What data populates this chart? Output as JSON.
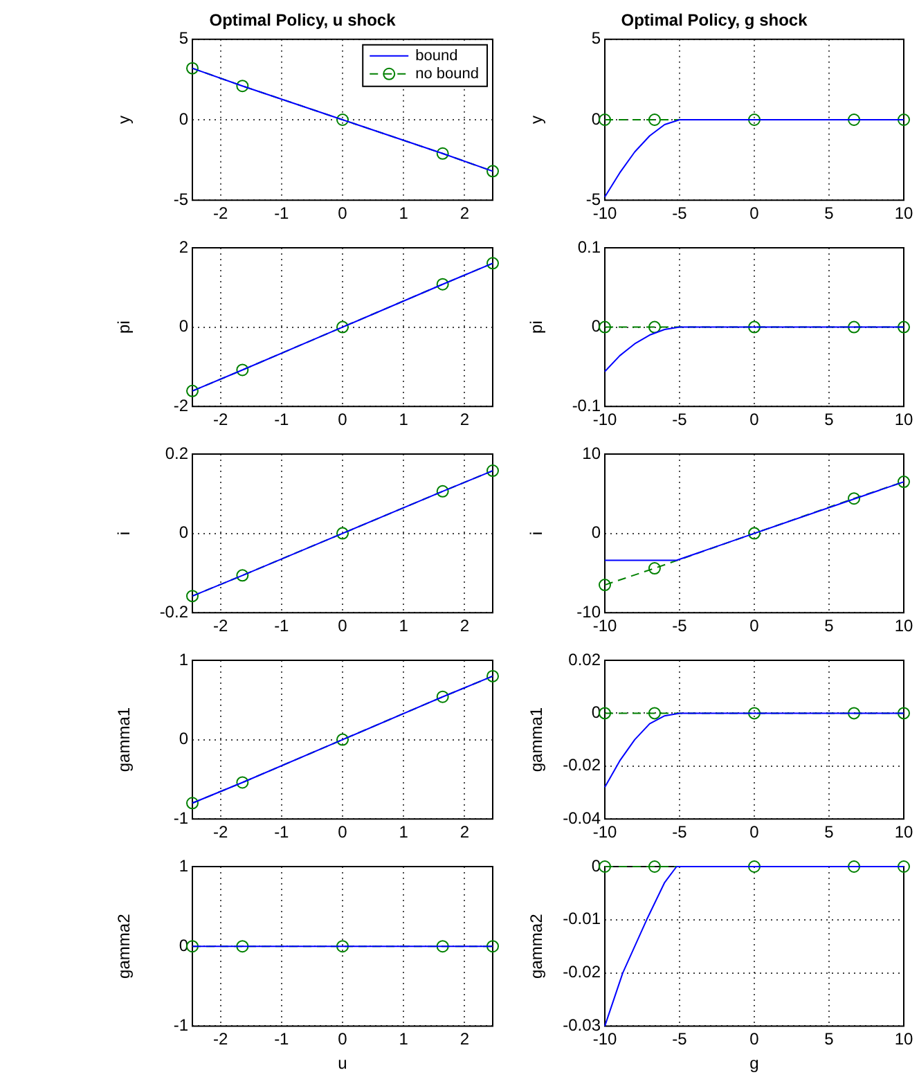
{
  "chart_data": [
    {
      "type": "line",
      "title": "Optimal Policy, u shock",
      "ylabel": "y",
      "xlim": [
        -2.46,
        2.46
      ],
      "xticks": [
        -2,
        -1,
        0,
        1,
        2
      ],
      "ylim": [
        -5,
        5
      ],
      "yticks": [
        -5,
        0,
        5
      ],
      "grid": true,
      "legend": "top right",
      "series": [
        {
          "name": "bound",
          "color": "#0000ff",
          "marker": "none",
          "line_style": "solid",
          "x": [
            -2.46,
            -1.64,
            0,
            1.64,
            2.46
          ],
          "values": [
            3.2,
            2.1,
            0,
            -2.1,
            -3.2
          ]
        },
        {
          "name": "no bound",
          "color": "#008000",
          "marker": "circle",
          "line_style": "dashed",
          "x": [
            -2.46,
            -1.64,
            0,
            1.64,
            2.46
          ],
          "values": [
            3.2,
            2.1,
            0,
            -2.1,
            -3.2
          ]
        }
      ]
    },
    {
      "type": "line",
      "title": "Optimal Policy, g shock",
      "ylabel": "y",
      "xlim": [
        -10,
        10
      ],
      "xticks": [
        -10,
        -5,
        0,
        5,
        10
      ],
      "ylim": [
        -5,
        5
      ],
      "yticks": [
        -5,
        0,
        5
      ],
      "grid": true,
      "series": [
        {
          "color": "#0000ff",
          "marker": "none",
          "line_style": "solid",
          "x": [
            -10,
            -9,
            -8,
            -7,
            -6,
            -5,
            10
          ],
          "values": [
            -4.8,
            -3.3,
            -2.0,
            -1.0,
            -0.3,
            0,
            0
          ]
        },
        {
          "color": "#008000",
          "marker": "circle",
          "line_style": "dashed",
          "x": [
            -10,
            -6.67,
            0,
            6.67,
            10
          ],
          "values": [
            0,
            0,
            0,
            0,
            0
          ]
        }
      ]
    },
    {
      "type": "line",
      "ylabel": "pi",
      "xlim": [
        -2.46,
        2.46
      ],
      "xticks": [
        -2,
        -1,
        0,
        1,
        2
      ],
      "ylim": [
        -2,
        2
      ],
      "yticks": [
        -2,
        0,
        2
      ],
      "grid": true,
      "series": [
        {
          "color": "#0000ff",
          "marker": "none",
          "line_style": "solid",
          "x": [
            -2.46,
            -1.64,
            0,
            1.64,
            2.46
          ],
          "values": [
            -1.61,
            -1.08,
            0,
            1.08,
            1.61
          ]
        },
        {
          "color": "#008000",
          "marker": "circle",
          "line_style": "dashed",
          "x": [
            -2.46,
            -1.64,
            0,
            1.64,
            2.46
          ],
          "values": [
            -1.61,
            -1.08,
            0,
            1.08,
            1.61
          ]
        }
      ]
    },
    {
      "type": "line",
      "ylabel": "pi",
      "xlim": [
        -10,
        10
      ],
      "xticks": [
        -10,
        -5,
        0,
        5,
        10
      ],
      "ylim": [
        -0.1,
        0.1
      ],
      "yticks": [
        -0.1,
        0,
        0.1
      ],
      "grid": true,
      "series": [
        {
          "color": "#0000ff",
          "marker": "none",
          "line_style": "solid",
          "x": [
            -10,
            -9,
            -8,
            -7,
            -6,
            -5,
            10
          ],
          "values": [
            -0.056,
            -0.036,
            -0.021,
            -0.01,
            -0.003,
            0,
            0
          ]
        },
        {
          "color": "#008000",
          "marker": "circle",
          "line_style": "dashed",
          "x": [
            -10,
            -6.67,
            0,
            6.67,
            10
          ],
          "values": [
            0,
            0,
            0,
            0,
            0
          ]
        }
      ]
    },
    {
      "type": "line",
      "ylabel": "i",
      "xlim": [
        -2.46,
        2.46
      ],
      "xticks": [
        -2,
        -1,
        0,
        1,
        2
      ],
      "ylim": [
        -0.2,
        0.2
      ],
      "yticks": [
        -0.2,
        0,
        0.2
      ],
      "grid": true,
      "series": [
        {
          "color": "#0000ff",
          "marker": "none",
          "line_style": "solid",
          "x": [
            -2.46,
            -1.64,
            0,
            1.64,
            2.46
          ],
          "values": [
            -0.158,
            -0.106,
            0,
            0.106,
            0.158
          ]
        },
        {
          "color": "#008000",
          "marker": "circle",
          "line_style": "dashed",
          "x": [
            -2.46,
            -1.64,
            0,
            1.64,
            2.46
          ],
          "values": [
            -0.158,
            -0.106,
            0,
            0.106,
            0.158
          ]
        }
      ]
    },
    {
      "type": "line",
      "ylabel": "i",
      "xlim": [
        -10,
        10
      ],
      "xticks": [
        -10,
        -5,
        0,
        5,
        10
      ],
      "ylim": [
        -10,
        10
      ],
      "yticks": [
        -10,
        0,
        10
      ],
      "grid": true,
      "series": [
        {
          "color": "#0000ff",
          "marker": "none",
          "line_style": "solid",
          "x": [
            -10,
            -5.2,
            0,
            10
          ],
          "values": [
            -3.4,
            -3.4,
            0,
            6.5
          ]
        },
        {
          "color": "#008000",
          "marker": "circle",
          "line_style": "dashed",
          "x": [
            -10,
            -6.67,
            0,
            6.67,
            10
          ],
          "values": [
            -6.5,
            -4.4,
            0,
            4.4,
            6.5
          ]
        }
      ]
    },
    {
      "type": "line",
      "ylabel": "gamma1",
      "xlim": [
        -2.46,
        2.46
      ],
      "xticks": [
        -2,
        -1,
        0,
        1,
        2
      ],
      "ylim": [
        -1,
        1
      ],
      "yticks": [
        -1,
        0,
        1
      ],
      "grid": true,
      "series": [
        {
          "color": "#0000ff",
          "marker": "none",
          "line_style": "solid",
          "x": [
            -2.46,
            -1.64,
            0,
            1.64,
            2.46
          ],
          "values": [
            -0.8,
            -0.54,
            0,
            0.54,
            0.8
          ]
        },
        {
          "color": "#008000",
          "marker": "circle",
          "line_style": "dashed",
          "x": [
            -2.46,
            -1.64,
            0,
            1.64,
            2.46
          ],
          "values": [
            -0.8,
            -0.54,
            0,
            0.54,
            0.8
          ]
        }
      ]
    },
    {
      "type": "line",
      "ylabel": "gamma1",
      "xlim": [
        -10,
        10
      ],
      "xticks": [
        -10,
        -5,
        0,
        5,
        10
      ],
      "ylim": [
        -0.04,
        0.02
      ],
      "yticks": [
        -0.04,
        -0.02,
        0,
        0.02
      ],
      "grid": true,
      "series": [
        {
          "color": "#0000ff",
          "marker": "none",
          "line_style": "solid",
          "x": [
            -10,
            -9,
            -8,
            -7,
            -6,
            -5,
            10
          ],
          "values": [
            -0.028,
            -0.018,
            -0.01,
            -0.004,
            -0.001,
            0,
            0
          ]
        },
        {
          "color": "#008000",
          "marker": "circle",
          "line_style": "dashed",
          "x": [
            -10,
            -6.67,
            0,
            6.67,
            10
          ],
          "values": [
            0,
            0,
            0,
            0,
            0
          ]
        }
      ]
    },
    {
      "type": "line",
      "xlabel": "u",
      "ylabel": "gamma2",
      "xlim": [
        -2.46,
        2.46
      ],
      "xticks": [
        -2,
        -1,
        0,
        1,
        2
      ],
      "ylim": [
        -1,
        1
      ],
      "yticks": [
        -1,
        0,
        1
      ],
      "grid": true,
      "series": [
        {
          "color": "#0000ff",
          "marker": "none",
          "line_style": "solid",
          "x": [
            -2.46,
            -1.64,
            0,
            1.64,
            2.46
          ],
          "values": [
            0,
            0,
            0,
            0,
            0
          ]
        },
        {
          "color": "#008000",
          "marker": "circle",
          "line_style": "dashed",
          "x": [
            -2.46,
            -1.64,
            0,
            1.64,
            2.46
          ],
          "values": [
            0,
            0,
            0,
            0,
            0
          ]
        }
      ]
    },
    {
      "type": "line",
      "xlabel": "g",
      "ylabel": "gamma2",
      "xlim": [
        -10,
        10
      ],
      "xticks": [
        -10,
        -5,
        0,
        5,
        10
      ],
      "ylim": [
        -0.03,
        0
      ],
      "yticks": [
        -0.03,
        -0.02,
        -0.01,
        0
      ],
      "grid": true,
      "series": [
        {
          "color": "#0000ff",
          "marker": "none",
          "line_style": "solid",
          "x": [
            -10,
            -8.8,
            -7.2,
            -6,
            -5.2,
            10
          ],
          "values": [
            -0.03,
            -0.02,
            -0.01,
            -0.003,
            0,
            0
          ]
        },
        {
          "color": "#008000",
          "marker": "circle",
          "line_style": "dashed",
          "x": [
            -10,
            -6.67,
            0,
            6.67,
            10
          ],
          "values": [
            0,
            0,
            0,
            0,
            0
          ]
        }
      ]
    }
  ]
}
